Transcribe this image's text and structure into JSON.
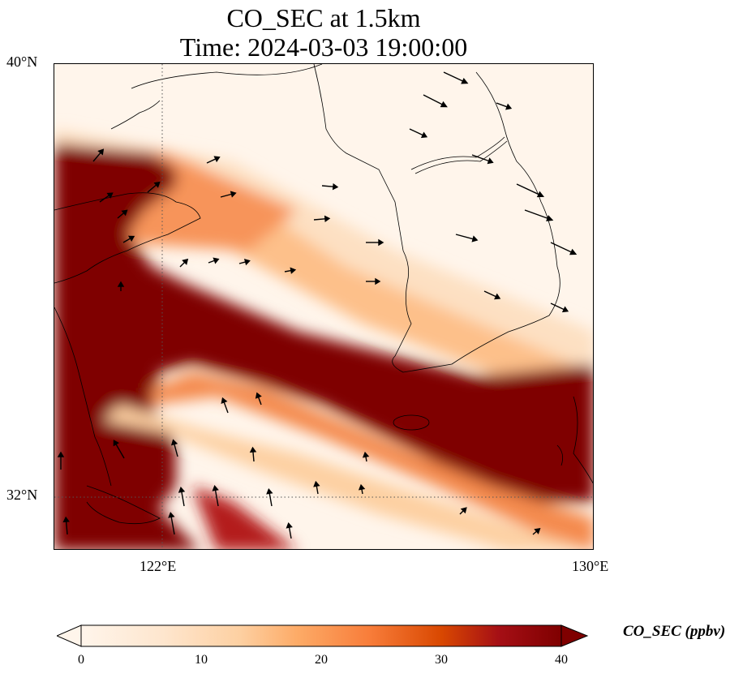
{
  "title": {
    "line1": "CO_SEC at 1.5km",
    "line2": "Time: 2024-03-03 19:00:00"
  },
  "axes": {
    "lat_ticks": [
      "40°N",
      "32°N"
    ],
    "lon_ticks": [
      "122°E",
      "130°E"
    ],
    "lat_range": [
      31,
      40
    ],
    "lon_range": [
      120,
      130
    ],
    "gridlines": "dotted"
  },
  "colorbar": {
    "label": "CO_SEC (ppbv)",
    "ticks": [
      "0",
      "10",
      "20",
      "30",
      "40"
    ],
    "range": [
      0,
      40
    ],
    "extend": "max",
    "colormap": [
      "#fff5eb",
      "#fdd9b4",
      "#fdab67",
      "#f87d3a",
      "#d94801",
      "#a50f15",
      "#7f0000"
    ]
  },
  "colors": {
    "land_clean": "#fff5eb",
    "max_plume": "#7f0000",
    "coastline": "#000000",
    "wind_vector": "#000000"
  }
}
